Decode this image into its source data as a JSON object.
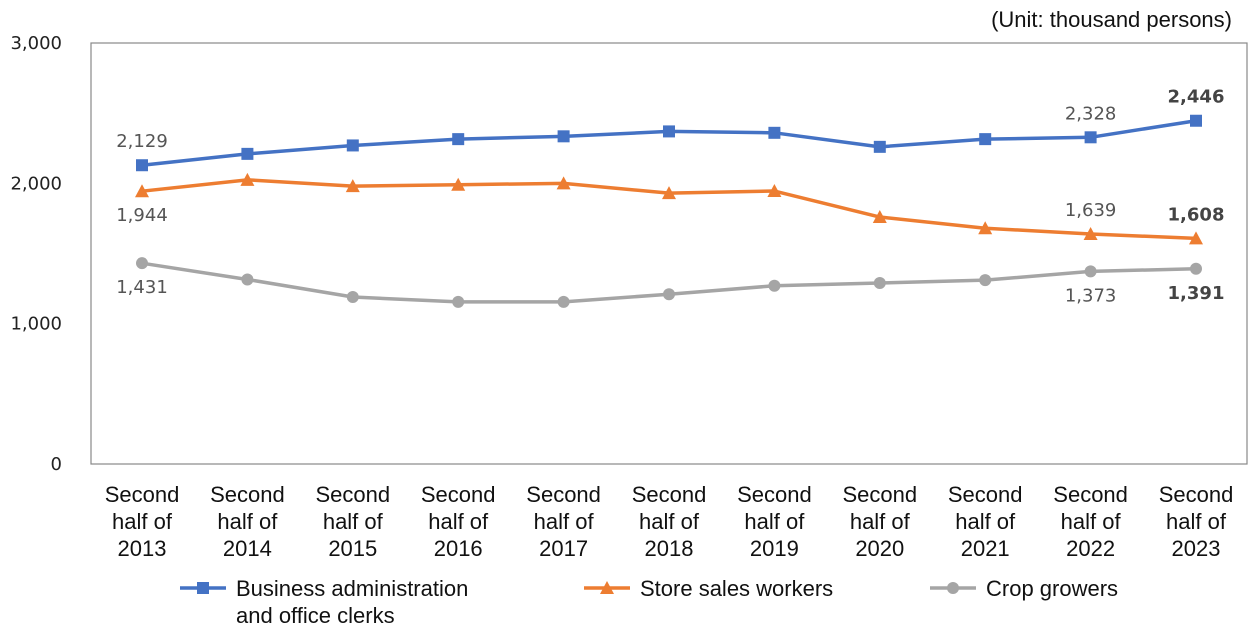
{
  "chart_data": {
    "type": "line",
    "unit_label": "(Unit: thousand persons)",
    "title": "",
    "xlabel": "",
    "ylabel": "",
    "ylim": [
      0,
      3000
    ],
    "yticks": [
      0,
      1000,
      2000,
      3000
    ],
    "ytick_labels": [
      "0",
      "1,000",
      "2,000",
      "3,000"
    ],
    "grid": false,
    "legend_position": "bottom",
    "categories": [
      [
        "Second",
        "half of",
        "2013"
      ],
      [
        "Second",
        "half of",
        "2014"
      ],
      [
        "Second",
        "half of",
        "2015"
      ],
      [
        "Second",
        "half of",
        "2016"
      ],
      [
        "Second",
        "half of",
        "2017"
      ],
      [
        "Second",
        "half of",
        "2018"
      ],
      [
        "Second",
        "half of",
        "2019"
      ],
      [
        "Second",
        "half of",
        "2020"
      ],
      [
        "Second",
        "half of",
        "2021"
      ],
      [
        "Second",
        "half of",
        "2022"
      ],
      [
        "Second",
        "half of",
        "2023"
      ]
    ],
    "series": [
      {
        "name": [
          "Business administration",
          "and office clerks"
        ],
        "color": "#4472C4",
        "marker": "square",
        "values": [
          2129,
          2210,
          2270,
          2315,
          2335,
          2370,
          2360,
          2260,
          2315,
          2328,
          2446
        ],
        "labels": [
          {
            "index": 0,
            "text": "2,129",
            "pos": "above",
            "bold": false
          },
          {
            "index": 9,
            "text": "2,328",
            "pos": "above",
            "bold": false
          },
          {
            "index": 10,
            "text": "2,446",
            "pos": "above",
            "bold": true
          }
        ]
      },
      {
        "name": [
          "Store sales workers"
        ],
        "color": "#ED7D31",
        "marker": "triangle",
        "values": [
          1944,
          2025,
          1980,
          1990,
          2000,
          1930,
          1945,
          1760,
          1680,
          1639,
          1608
        ],
        "labels": [
          {
            "index": 0,
            "text": "1,944",
            "pos": "below",
            "bold": false
          },
          {
            "index": 9,
            "text": "1,639",
            "pos": "above",
            "bold": false
          },
          {
            "index": 10,
            "text": "1,608",
            "pos": "above",
            "bold": true
          }
        ]
      },
      {
        "name": [
          "Crop growers"
        ],
        "color": "#A5A5A5",
        "marker": "circle",
        "values": [
          1431,
          1315,
          1190,
          1155,
          1155,
          1210,
          1270,
          1290,
          1310,
          1373,
          1391
        ],
        "labels": [
          {
            "index": 0,
            "text": "1,431",
            "pos": "below",
            "bold": false
          },
          {
            "index": 9,
            "text": "1,373",
            "pos": "below",
            "bold": false
          },
          {
            "index": 10,
            "text": "1,391",
            "pos": "below",
            "bold": true
          }
        ]
      }
    ]
  }
}
